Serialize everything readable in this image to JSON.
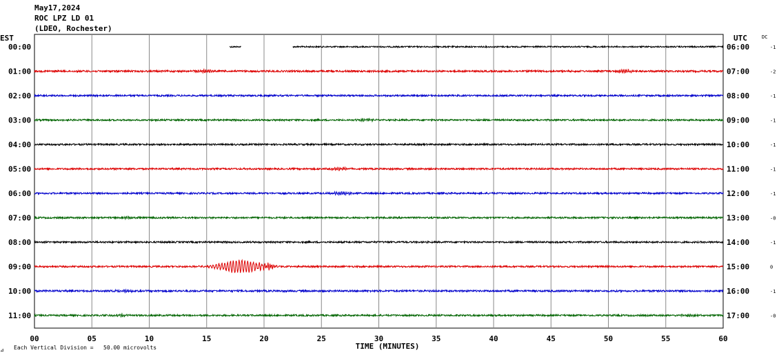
{
  "header": {
    "date": "May17,2024",
    "station": "ROC LPZ LD 01",
    "network": "(LDEO, Rochester)"
  },
  "left_axis_title": "EST",
  "right_axis_title": "UTC",
  "dc_title": "DC",
  "footer": {
    "icon_text": "⊿",
    "note": "Each Vertical Division =   50.00 microvolts"
  },
  "colors": {
    "black": "#000000",
    "red": "#dd0000",
    "blue": "#0000cc",
    "green": "#006400",
    "grid": "#888888"
  },
  "chart_data": {
    "type": "line",
    "title": "May17,2024",
    "subtitle": "ROC LPZ LD 01 (LDEO, Rochester)",
    "xlabel": "TIME (MINUTES)",
    "xlim": [
      0,
      60
    ],
    "x_ticks": [
      "00",
      "05",
      "10",
      "15",
      "20",
      "25",
      "30",
      "35",
      "40",
      "45",
      "50",
      "55",
      "60"
    ],
    "grid": "vertical every 5 minutes",
    "traces": [
      {
        "est": "00:00",
        "utc": "06:00",
        "dc": "-1",
        "color": "black",
        "amplitude": 1.0,
        "gaps": [
          [
            0,
            17.0
          ],
          [
            18.0,
            22.5
          ]
        ],
        "segments": [
          [
            17.0,
            18.0
          ]
        ],
        "events": []
      },
      {
        "est": "01:00",
        "utc": "07:00",
        "dc": "-2",
        "color": "red",
        "amplitude": 1.3,
        "gaps": [],
        "segments": [],
        "events": [
          {
            "t": 14.8,
            "amp": 1.8
          },
          {
            "t": 51.5,
            "amp": 2.2
          }
        ]
      },
      {
        "est": "02:00",
        "utc": "08:00",
        "dc": "-1",
        "color": "blue",
        "amplitude": 1.2,
        "gaps": [],
        "segments": [],
        "events": []
      },
      {
        "est": "03:00",
        "utc": "09:00",
        "dc": "-1",
        "color": "green",
        "amplitude": 1.2,
        "gaps": [],
        "segments": [],
        "events": [
          {
            "t": 28.8,
            "amp": 1.6
          }
        ]
      },
      {
        "est": "04:00",
        "utc": "10:00",
        "dc": "-1",
        "color": "black",
        "amplitude": 1.2,
        "gaps": [],
        "segments": [],
        "events": []
      },
      {
        "est": "05:00",
        "utc": "11:00",
        "dc": "-1",
        "color": "red",
        "amplitude": 1.2,
        "gaps": [],
        "segments": [],
        "events": [
          {
            "t": 26.5,
            "amp": 1.8
          }
        ]
      },
      {
        "est": "06:00",
        "utc": "12:00",
        "dc": "-1",
        "color": "blue",
        "amplitude": 1.2,
        "gaps": [],
        "segments": [],
        "events": [
          {
            "t": 26.8,
            "amp": 2.0
          }
        ]
      },
      {
        "est": "07:00",
        "utc": "13:00",
        "dc": "-0",
        "color": "green",
        "amplitude": 1.2,
        "gaps": [],
        "segments": [],
        "events": [
          {
            "t": 8.2,
            "amp": 1.6
          }
        ]
      },
      {
        "est": "08:00",
        "utc": "14:00",
        "dc": "-1",
        "color": "black",
        "amplitude": 1.2,
        "gaps": [],
        "segments": [],
        "events": []
      },
      {
        "est": "09:00",
        "utc": "15:00",
        "dc": "0",
        "color": "red",
        "amplitude": 1.2,
        "gaps": [],
        "segments": [],
        "events": [
          {
            "t": 17.9,
            "amp": 9.0,
            "width": 1.4,
            "period": 0.25
          },
          {
            "t": 20.4,
            "amp": 3.0
          }
        ]
      },
      {
        "est": "10:00",
        "utc": "16:00",
        "dc": "-1",
        "color": "blue",
        "amplitude": 1.3,
        "gaps": [],
        "segments": [],
        "events": [
          {
            "t": 8.0,
            "amp": 1.6
          }
        ]
      },
      {
        "est": "11:00",
        "utc": "17:00",
        "dc": "-0",
        "color": "green",
        "amplitude": 1.2,
        "gaps": [],
        "segments": [],
        "events": [
          {
            "t": 7.5,
            "amp": 1.6
          },
          {
            "t": 57.2,
            "amp": 1.8
          }
        ]
      }
    ]
  }
}
